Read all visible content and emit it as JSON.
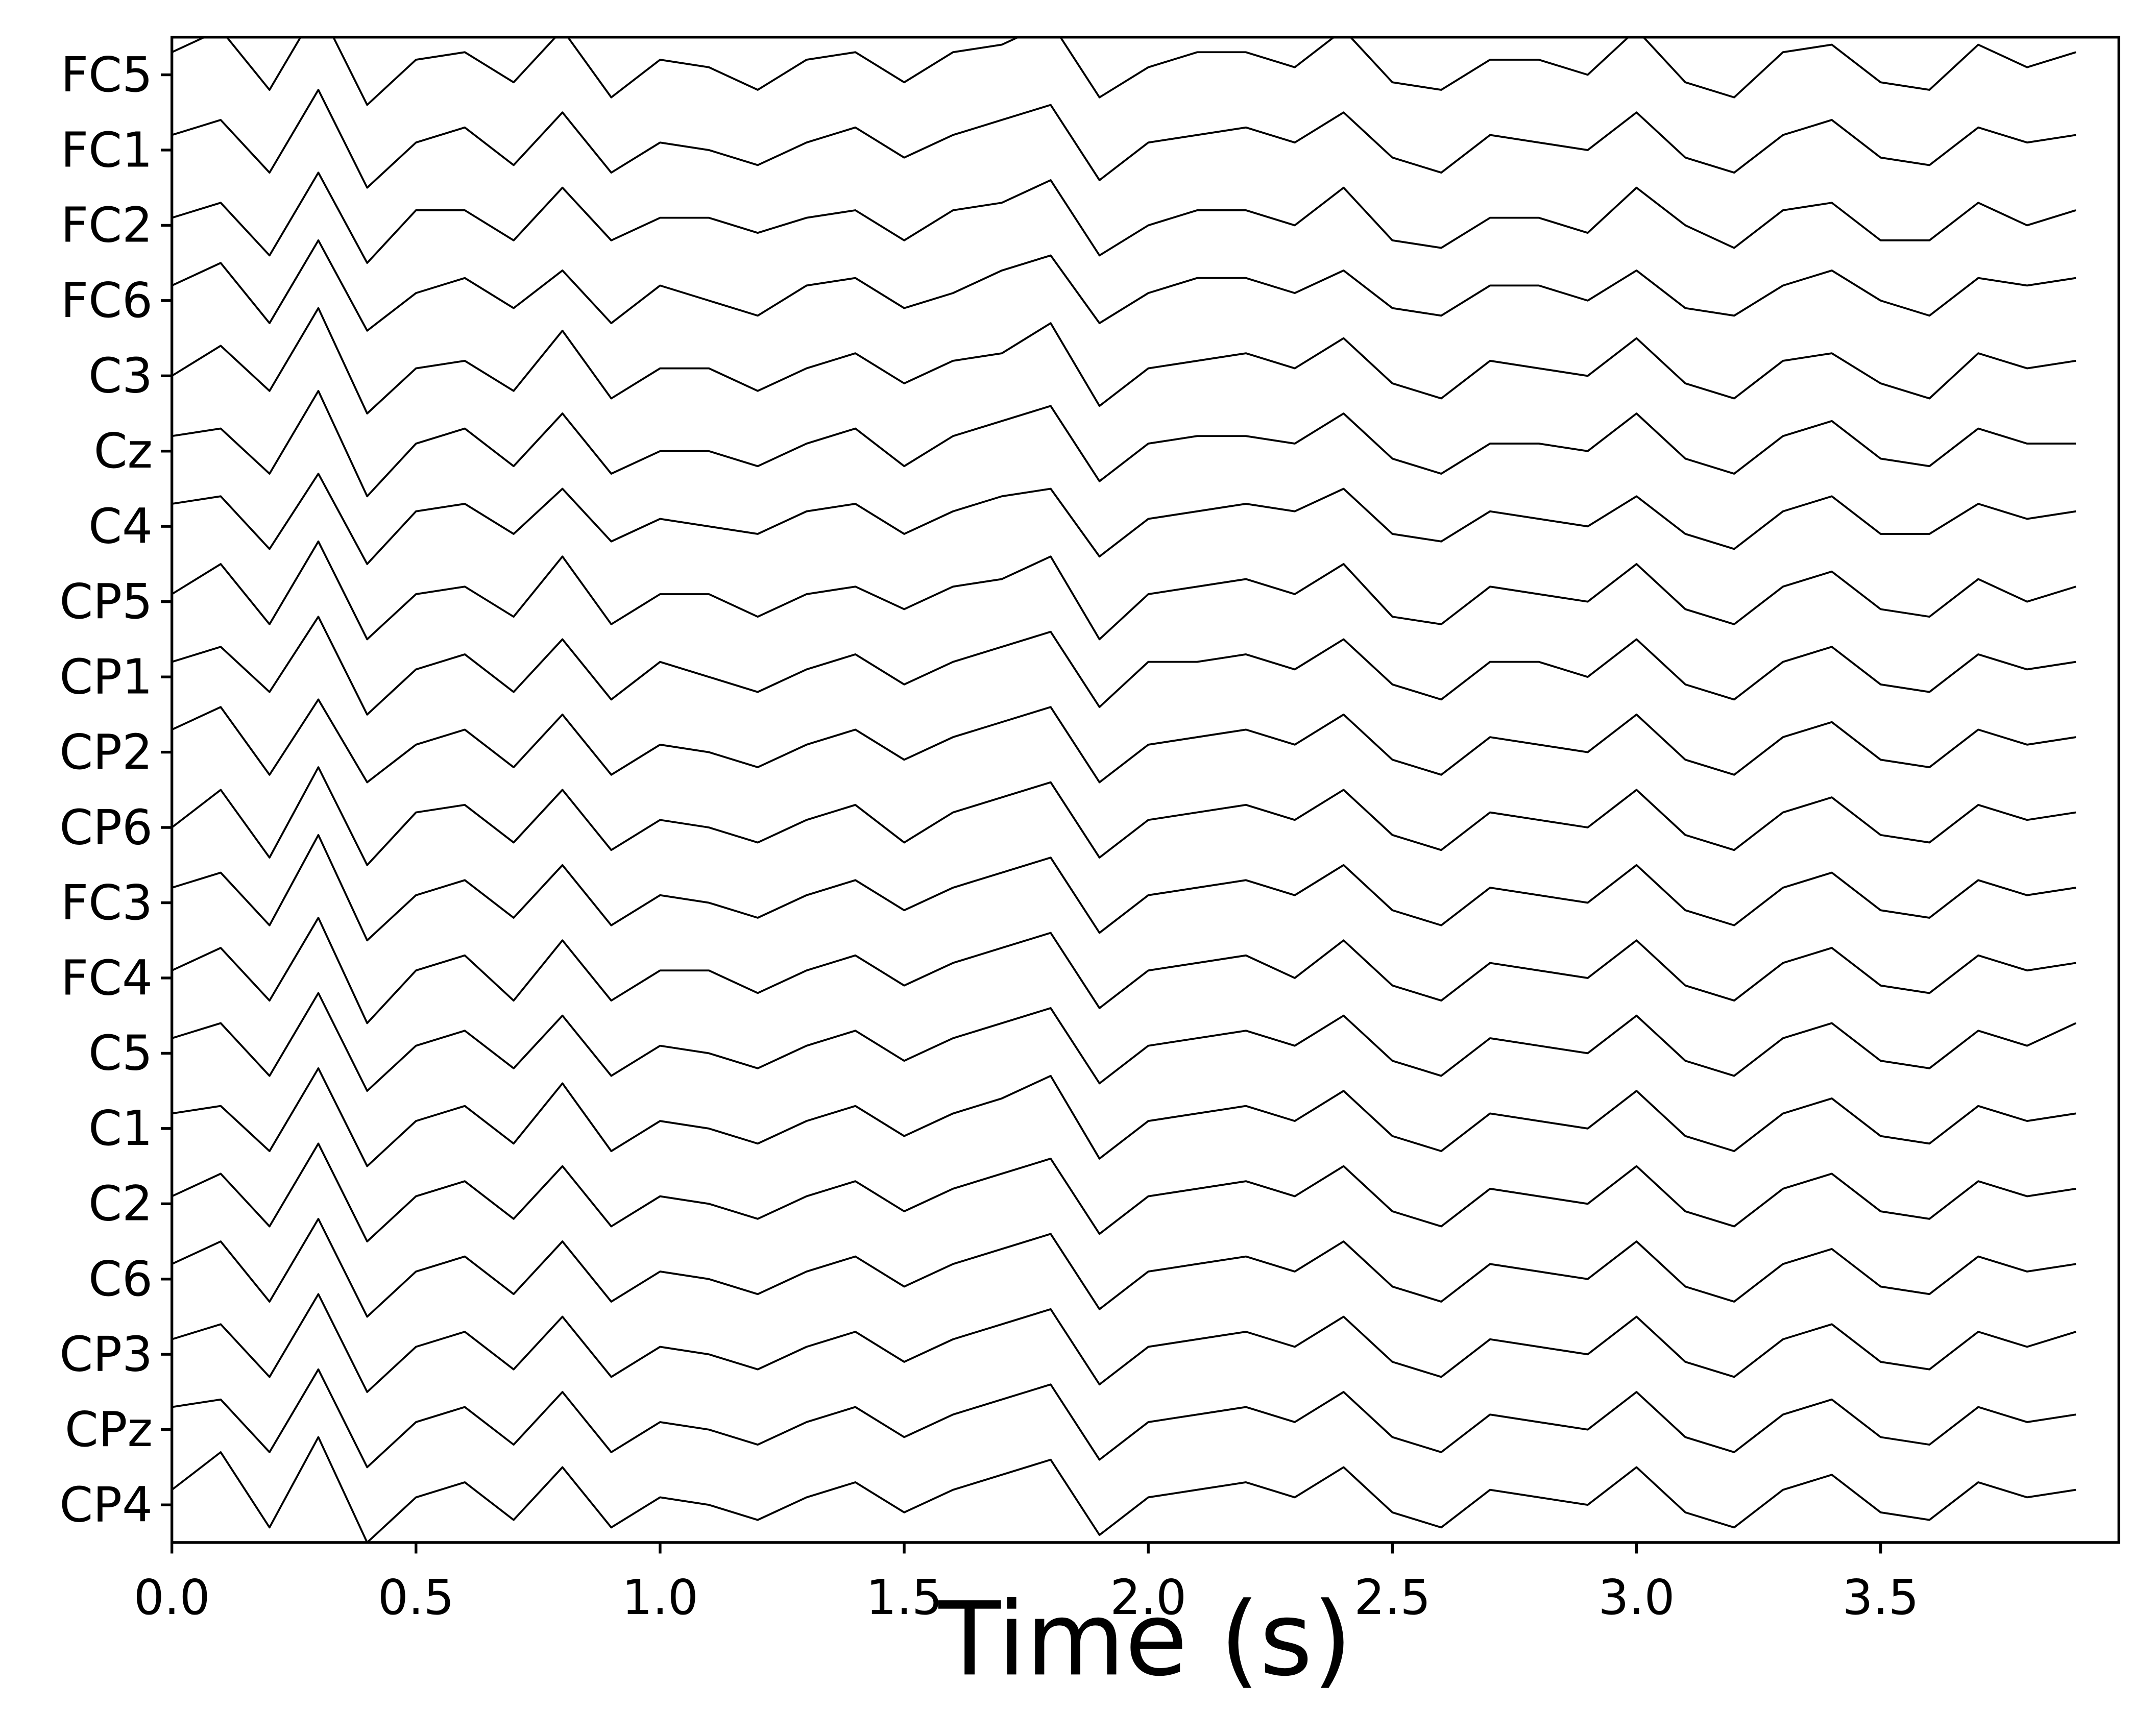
{
  "chart_data": {
    "type": "line",
    "x_label": "Time (s)",
    "color": "#000000",
    "x": [
      0,
      0.1,
      0.2,
      0.3,
      0.4,
      0.5,
      0.6,
      0.7,
      0.8,
      0.9,
      1.0,
      1.1,
      1.2,
      1.3,
      1.4,
      1.5,
      1.6,
      1.7,
      1.8,
      1.9,
      2.0,
      2.1,
      2.2,
      2.3,
      2.4,
      2.5,
      2.6,
      2.7,
      2.8,
      2.9,
      3.0,
      3.1,
      3.2,
      3.3,
      3.4,
      3.5,
      3.6,
      3.7,
      3.8,
      3.9
    ],
    "xlim": [
      0,
      3.988
    ],
    "xticks": [
      {
        "value": 0,
        "label": "0.0"
      },
      0.5,
      {
        "value": 1,
        "label": "1.0"
      },
      1.5,
      {
        "value": 2,
        "label": "2.0"
      },
      2.5,
      {
        "value": 3,
        "label": "3.0"
      },
      3.5
    ],
    "series": [
      {
        "name": "FC5",
        "values": [
          0.3,
          0.6,
          -0.2,
          0.9,
          -0.4,
          0.2,
          0.3,
          -0.1,
          0.6,
          -0.3,
          0.2,
          0.1,
          -0.2,
          0.2,
          0.3,
          -0.1,
          0.3,
          0.4,
          0.7,
          -0.3,
          0.1,
          0.3,
          0.3,
          0.1,
          0.6,
          -0.1,
          -0.2,
          0.2,
          0.2,
          0.0,
          0.6,
          -0.1,
          -0.3,
          0.3,
          0.4,
          -0.1,
          -0.2,
          0.4,
          0.1,
          0.3
        ]
      },
      {
        "name": "FC1",
        "values": [
          0.2,
          0.4,
          -0.3,
          0.8,
          -0.5,
          0.1,
          0.3,
          -0.2,
          0.5,
          -0.3,
          0.1,
          0.0,
          -0.2,
          0.1,
          0.3,
          -0.1,
          0.2,
          0.4,
          0.6,
          -0.4,
          0.1,
          0.2,
          0.3,
          0.1,
          0.5,
          -0.1,
          -0.3,
          0.2,
          0.1,
          0.0,
          0.5,
          -0.1,
          -0.3,
          0.2,
          0.4,
          -0.1,
          -0.2,
          0.3,
          0.1,
          0.2
        ]
      },
      {
        "name": "FC2",
        "values": [
          0.1,
          0.3,
          -0.4,
          0.7,
          -0.5,
          0.2,
          0.2,
          -0.2,
          0.5,
          -0.2,
          0.1,
          0.1,
          -0.1,
          0.1,
          0.2,
          -0.2,
          0.2,
          0.3,
          0.6,
          -0.4,
          0.0,
          0.2,
          0.2,
          0.0,
          0.5,
          -0.2,
          -0.3,
          0.1,
          0.1,
          -0.1,
          0.5,
          0.0,
          -0.3,
          0.2,
          0.3,
          -0.2,
          -0.2,
          0.3,
          0.0,
          0.2
        ]
      },
      {
        "name": "FC6",
        "values": [
          0.2,
          0.5,
          -0.3,
          0.8,
          -0.4,
          0.1,
          0.3,
          -0.1,
          0.4,
          -0.3,
          0.2,
          0.0,
          -0.2,
          0.2,
          0.3,
          -0.1,
          0.1,
          0.4,
          0.6,
          -0.3,
          0.1,
          0.3,
          0.3,
          0.1,
          0.4,
          -0.1,
          -0.2,
          0.2,
          0.2,
          0.0,
          0.4,
          -0.1,
          -0.2,
          0.2,
          0.4,
          0.0,
          -0.2,
          0.3,
          0.2,
          0.3
        ]
      },
      {
        "name": "C3",
        "values": [
          0.0,
          0.4,
          -0.2,
          0.9,
          -0.5,
          0.1,
          0.2,
          -0.2,
          0.6,
          -0.3,
          0.1,
          0.1,
          -0.2,
          0.1,
          0.3,
          -0.1,
          0.2,
          0.3,
          0.7,
          -0.4,
          0.1,
          0.2,
          0.3,
          0.1,
          0.5,
          -0.1,
          -0.3,
          0.2,
          0.1,
          0.0,
          0.5,
          -0.1,
          -0.3,
          0.2,
          0.3,
          -0.1,
          -0.3,
          0.3,
          0.1,
          0.2
        ]
      },
      {
        "name": "Cz",
        "values": [
          0.2,
          0.3,
          -0.3,
          0.8,
          -0.6,
          0.1,
          0.3,
          -0.2,
          0.5,
          -0.3,
          0.0,
          0.0,
          -0.2,
          0.1,
          0.3,
          -0.2,
          0.2,
          0.4,
          0.6,
          -0.4,
          0.1,
          0.2,
          0.2,
          0.1,
          0.5,
          -0.1,
          -0.3,
          0.1,
          0.1,
          0.0,
          0.5,
          -0.1,
          -0.3,
          0.2,
          0.4,
          -0.1,
          -0.2,
          0.3,
          0.1,
          0.1
        ]
      },
      {
        "name": "C4",
        "values": [
          0.3,
          0.4,
          -0.3,
          0.7,
          -0.5,
          0.2,
          0.3,
          -0.1,
          0.5,
          -0.2,
          0.1,
          0.0,
          -0.1,
          0.2,
          0.3,
          -0.1,
          0.2,
          0.4,
          0.5,
          -0.4,
          0.1,
          0.2,
          0.3,
          0.2,
          0.5,
          -0.1,
          -0.2,
          0.2,
          0.1,
          0.0,
          0.4,
          -0.1,
          -0.3,
          0.2,
          0.4,
          -0.1,
          -0.1,
          0.3,
          0.1,
          0.2
        ]
      },
      {
        "name": "CP5",
        "values": [
          0.1,
          0.5,
          -0.3,
          0.8,
          -0.5,
          0.1,
          0.2,
          -0.2,
          0.6,
          -0.3,
          0.1,
          0.1,
          -0.2,
          0.1,
          0.2,
          -0.1,
          0.2,
          0.3,
          0.6,
          -0.5,
          0.1,
          0.2,
          0.3,
          0.1,
          0.5,
          -0.2,
          -0.3,
          0.2,
          0.1,
          0.0,
          0.5,
          -0.1,
          -0.3,
          0.2,
          0.4,
          -0.1,
          -0.2,
          0.3,
          0.0,
          0.2
        ]
      },
      {
        "name": "CP1",
        "values": [
          0.2,
          0.4,
          -0.2,
          0.8,
          -0.5,
          0.1,
          0.3,
          -0.2,
          0.5,
          -0.3,
          0.2,
          0.0,
          -0.2,
          0.1,
          0.3,
          -0.1,
          0.2,
          0.4,
          0.6,
          -0.4,
          0.2,
          0.2,
          0.3,
          0.1,
          0.5,
          -0.1,
          -0.3,
          0.2,
          0.2,
          0.0,
          0.5,
          -0.1,
          -0.3,
          0.2,
          0.4,
          -0.1,
          -0.2,
          0.3,
          0.1,
          0.2
        ]
      },
      {
        "name": "CP2",
        "values": [
          0.3,
          0.6,
          -0.3,
          0.7,
          -0.4,
          0.1,
          0.3,
          -0.2,
          0.5,
          -0.3,
          0.1,
          0.0,
          -0.2,
          0.1,
          0.3,
          -0.1,
          0.2,
          0.4,
          0.6,
          -0.4,
          0.1,
          0.2,
          0.3,
          0.1,
          0.5,
          -0.1,
          -0.3,
          0.2,
          0.1,
          0.0,
          0.5,
          -0.1,
          -0.3,
          0.2,
          0.4,
          -0.1,
          -0.2,
          0.3,
          0.1,
          0.2
        ]
      },
      {
        "name": "CP6",
        "values": [
          0.0,
          0.5,
          -0.4,
          0.8,
          -0.5,
          0.2,
          0.3,
          -0.2,
          0.5,
          -0.3,
          0.1,
          0.0,
          -0.2,
          0.1,
          0.3,
          -0.2,
          0.2,
          0.4,
          0.6,
          -0.4,
          0.1,
          0.2,
          0.3,
          0.1,
          0.5,
          -0.1,
          -0.3,
          0.2,
          0.1,
          0.0,
          0.5,
          -0.1,
          -0.3,
          0.2,
          0.4,
          -0.1,
          -0.2,
          0.3,
          0.1,
          0.2
        ]
      },
      {
        "name": "FC3",
        "values": [
          0.2,
          0.4,
          -0.3,
          0.9,
          -0.5,
          0.1,
          0.3,
          -0.2,
          0.5,
          -0.3,
          0.1,
          0.0,
          -0.2,
          0.1,
          0.3,
          -0.1,
          0.2,
          0.4,
          0.6,
          -0.4,
          0.1,
          0.2,
          0.3,
          0.1,
          0.5,
          -0.1,
          -0.3,
          0.2,
          0.1,
          0.0,
          0.5,
          -0.1,
          -0.3,
          0.2,
          0.4,
          -0.1,
          -0.2,
          0.3,
          0.1,
          0.2
        ]
      },
      {
        "name": "FC4",
        "values": [
          0.1,
          0.4,
          -0.3,
          0.8,
          -0.6,
          0.1,
          0.3,
          -0.3,
          0.5,
          -0.3,
          0.1,
          0.1,
          -0.2,
          0.1,
          0.3,
          -0.1,
          0.2,
          0.4,
          0.6,
          -0.4,
          0.1,
          0.2,
          0.3,
          0.0,
          0.5,
          -0.1,
          -0.3,
          0.2,
          0.1,
          0.0,
          0.5,
          -0.1,
          -0.3,
          0.2,
          0.4,
          -0.1,
          -0.2,
          0.3,
          0.1,
          0.2
        ]
      },
      {
        "name": "C5",
        "values": [
          0.2,
          0.4,
          -0.3,
          0.8,
          -0.5,
          0.1,
          0.3,
          -0.2,
          0.5,
          -0.3,
          0.1,
          0.0,
          -0.2,
          0.1,
          0.3,
          -0.1,
          0.2,
          0.4,
          0.6,
          -0.4,
          0.1,
          0.2,
          0.3,
          0.1,
          0.5,
          -0.1,
          -0.3,
          0.2,
          0.1,
          0.0,
          0.5,
          -0.1,
          -0.3,
          0.2,
          0.4,
          -0.1,
          -0.2,
          0.3,
          0.1,
          0.4
        ]
      },
      {
        "name": "C1",
        "values": [
          0.2,
          0.3,
          -0.3,
          0.8,
          -0.5,
          0.1,
          0.3,
          -0.2,
          0.6,
          -0.3,
          0.1,
          0.0,
          -0.2,
          0.1,
          0.3,
          -0.1,
          0.2,
          0.4,
          0.7,
          -0.4,
          0.1,
          0.2,
          0.3,
          0.1,
          0.5,
          -0.1,
          -0.3,
          0.2,
          0.1,
          0.0,
          0.5,
          -0.1,
          -0.3,
          0.2,
          0.4,
          -0.1,
          -0.2,
          0.3,
          0.1,
          0.2
        ]
      },
      {
        "name": "C2",
        "values": [
          0.1,
          0.4,
          -0.3,
          0.8,
          -0.5,
          0.1,
          0.3,
          -0.2,
          0.5,
          -0.3,
          0.1,
          0.0,
          -0.2,
          0.1,
          0.3,
          -0.1,
          0.2,
          0.4,
          0.6,
          -0.4,
          0.1,
          0.2,
          0.3,
          0.1,
          0.5,
          -0.1,
          -0.3,
          0.2,
          0.1,
          0.0,
          0.5,
          -0.1,
          -0.3,
          0.2,
          0.4,
          -0.1,
          -0.2,
          0.3,
          0.1,
          0.2
        ]
      },
      {
        "name": "C6",
        "values": [
          0.2,
          0.5,
          -0.3,
          0.8,
          -0.5,
          0.1,
          0.3,
          -0.2,
          0.5,
          -0.3,
          0.1,
          0.0,
          -0.2,
          0.1,
          0.3,
          -0.1,
          0.2,
          0.4,
          0.6,
          -0.4,
          0.1,
          0.2,
          0.3,
          0.1,
          0.5,
          -0.1,
          -0.3,
          0.2,
          0.1,
          0.0,
          0.5,
          -0.1,
          -0.3,
          0.2,
          0.4,
          -0.1,
          -0.2,
          0.3,
          0.1,
          0.2
        ]
      },
      {
        "name": "CP3",
        "values": [
          0.2,
          0.4,
          -0.3,
          0.8,
          -0.5,
          0.1,
          0.3,
          -0.2,
          0.5,
          -0.3,
          0.1,
          0.0,
          -0.2,
          0.1,
          0.3,
          -0.1,
          0.2,
          0.4,
          0.6,
          -0.4,
          0.1,
          0.2,
          0.3,
          0.1,
          0.5,
          -0.1,
          -0.3,
          0.2,
          0.1,
          0.0,
          0.5,
          -0.1,
          -0.3,
          0.2,
          0.4,
          -0.1,
          -0.2,
          0.3,
          0.1,
          0.3
        ]
      },
      {
        "name": "CPz",
        "values": [
          0.3,
          0.4,
          -0.3,
          0.8,
          -0.5,
          0.1,
          0.3,
          -0.2,
          0.5,
          -0.3,
          0.1,
          0.0,
          -0.2,
          0.1,
          0.3,
          -0.1,
          0.2,
          0.4,
          0.6,
          -0.4,
          0.1,
          0.2,
          0.3,
          0.1,
          0.5,
          -0.1,
          -0.3,
          0.2,
          0.1,
          0.0,
          0.5,
          -0.1,
          -0.3,
          0.2,
          0.4,
          -0.1,
          -0.2,
          0.3,
          0.1,
          0.2
        ]
      },
      {
        "name": "CP4",
        "values": [
          0.2,
          0.7,
          -0.3,
          0.9,
          -0.5,
          0.1,
          0.3,
          -0.2,
          0.5,
          -0.3,
          0.1,
          0.0,
          -0.2,
          0.1,
          0.3,
          -0.1,
          0.2,
          0.4,
          0.6,
          -0.4,
          0.1,
          0.2,
          0.3,
          0.1,
          0.5,
          -0.1,
          -0.3,
          0.2,
          0.1,
          0.0,
          0.5,
          -0.1,
          -0.3,
          0.2,
          0.4,
          -0.1,
          -0.2,
          0.3,
          0.1,
          0.2
        ]
      }
    ]
  }
}
